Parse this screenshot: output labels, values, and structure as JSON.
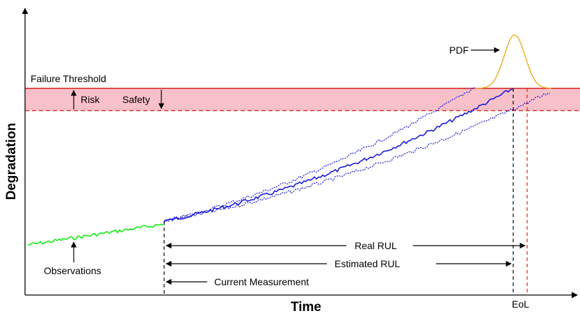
{
  "labels": {
    "failure_threshold": "Failure Threshold",
    "risk": "Risk",
    "safety": "Safety",
    "pdf": "PDF",
    "real_rul": "Real RUL",
    "estimated_rul": "Estimated RUL",
    "current_measurement": "Current Measurement",
    "observations": "Observations",
    "eol": "EoL"
  },
  "axes": {
    "x_title": "Time",
    "y_title": "Degradation"
  },
  "colors": {
    "observations": "#00ee00",
    "prediction": "#1a1adb",
    "pdf_curve": "#f0b030",
    "threshold_band": "#f8c0c8",
    "threshold_line": "#d81818",
    "eol_line": "#e02020"
  }
}
